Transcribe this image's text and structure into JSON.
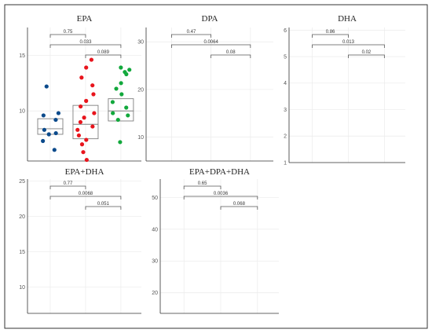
{
  "colors": {
    "group1": "#0b4a8b",
    "group2": "#e8141c",
    "group3": "#12a83c",
    "box": "#7f7f7f",
    "grid": "#ebebeb",
    "frame": "#333333"
  },
  "chart_data": [
    {
      "type": "box",
      "title": "EPA",
      "grid": true,
      "yticks": [
        10,
        15
      ],
      "ylim": [
        5.5,
        17.5
      ],
      "boxes": [
        {
          "q1": 7.9,
          "median": 8.4,
          "q3": 9.3
        },
        {
          "q1": 7.5,
          "median": 8.8,
          "q3": 10.5
        },
        {
          "q1": 9.1,
          "median": 10.0,
          "q3": 11.1
        }
      ],
      "points": [
        [
          6.5,
          7.3,
          7.9,
          8.0,
          8.3,
          9.2,
          9.6,
          9.8,
          12.2
        ],
        [
          5.6,
          6.3,
          7.0,
          7.4,
          7.8,
          8.3,
          8.6,
          9.0,
          9.4,
          9.8,
          10.4,
          10.9,
          11.5,
          12.3,
          13.0,
          13.9,
          14.6
        ],
        [
          7.2,
          9.2,
          9.6,
          9.8,
          10.3,
          10.8,
          11.5,
          12.0,
          12.5,
          13.3,
          13.5,
          13.7,
          13.9
        ]
      ],
      "comparisons": [
        {
          "label": "0.75"
        },
        {
          "label": "0.033"
        },
        {
          "label": "0.089"
        }
      ]
    },
    {
      "type": "box",
      "title": "DPA",
      "grid": true,
      "yticks": [
        10,
        20,
        30
      ],
      "ylim": [
        5,
        33
      ]
    },
    {
      "type": "box",
      "title": "DHA",
      "grid": true,
      "yticks": [
        1,
        2,
        3,
        4,
        5,
        6
      ],
      "ylim": [
        1,
        6.1
      ]
    },
    {
      "type": "box",
      "title": "EPA+DHA",
      "grid": true,
      "yticks": [
        10,
        15,
        20,
        25
      ],
      "ylim": [
        6.3,
        25.3
      ]
    },
    {
      "type": "box",
      "title": "EPA+DPA+DHA",
      "grid": true,
      "yticks": [
        20,
        30,
        40,
        50
      ],
      "ylim": [
        13.5,
        55.8
      ]
    }
  ],
  "panels": [
    {
      "title": "EPA",
      "yticks": [
        "10",
        "15"
      ],
      "sig": [
        "0.75",
        "0.033",
        "0.089"
      ]
    },
    {
      "title": "DPA",
      "yticks": [
        "10",
        "20",
        "30"
      ],
      "sig": [
        "0.47",
        "0.0064",
        "0.08"
      ]
    },
    {
      "title": "DHA",
      "yticks": [
        "1",
        "2",
        "3",
        "4",
        "5",
        "6"
      ],
      "sig": [
        "0.86",
        "0.013",
        "0.02"
      ]
    },
    {
      "title": "EPA+DHA",
      "yticks": [
        "10",
        "15",
        "20",
        "25"
      ],
      "sig": [
        "0.77",
        "0.0068",
        "0.051"
      ]
    },
    {
      "title": "EPA+DPA+DHA",
      "yticks": [
        "20",
        "30",
        "40",
        "50"
      ],
      "sig": [
        "0.65",
        "0.0036",
        "0.068"
      ]
    }
  ]
}
